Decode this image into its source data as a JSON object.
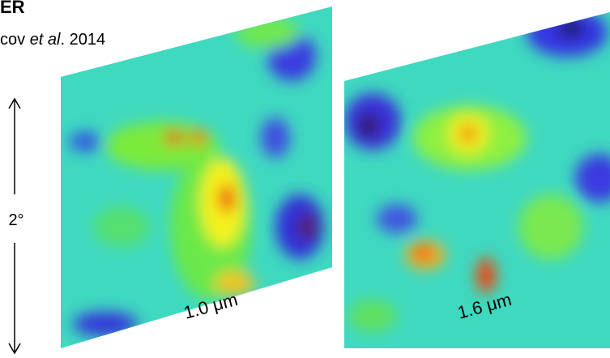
{
  "header": {
    "title": "ER",
    "citation": {
      "authors": "cov ",
      "emphasis": "et al",
      "year": ". 2014"
    }
  },
  "scale": {
    "label": "2°"
  },
  "panels": [
    {
      "label": "1.0 μm"
    },
    {
      "label": "1.6 μm"
    }
  ]
}
